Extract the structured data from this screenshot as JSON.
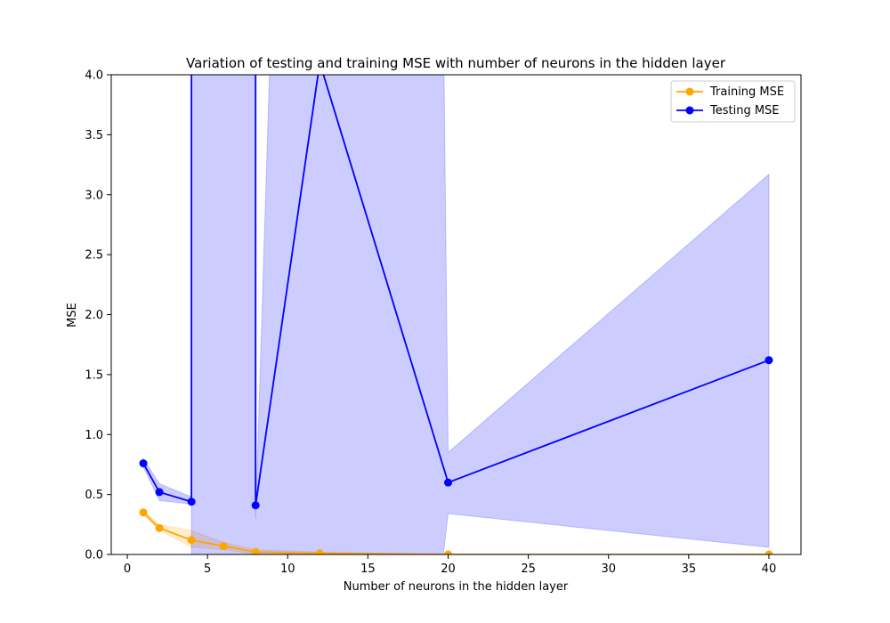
{
  "chart_data": {
    "type": "line",
    "title": "Variation of testing and training MSE with number of neurons in the hidden layer",
    "xlabel": "Number of neurons in the hidden layer",
    "ylabel": "MSE",
    "xlim": [
      -1,
      42
    ],
    "ylim": [
      0,
      4
    ],
    "xticks": [
      0,
      5,
      10,
      15,
      20,
      25,
      30,
      35,
      40
    ],
    "yticks": [
      0.0,
      0.5,
      1.0,
      1.5,
      2.0,
      2.5,
      3.0,
      3.5,
      4.0
    ],
    "xtick_labels": [
      "0",
      "5",
      "10",
      "15",
      "20",
      "25",
      "30",
      "35",
      "40"
    ],
    "ytick_labels": [
      "0.0",
      "0.5",
      "1.0",
      "1.5",
      "2.0",
      "2.5",
      "3.0",
      "3.5",
      "4.0"
    ],
    "grid": false,
    "legend_position": "top-right",
    "series": [
      {
        "name": "Training MSE",
        "color": "#ffa500",
        "x": [
          1,
          2,
          4,
          6,
          8,
          12,
          20,
          40
        ],
        "values": [
          0.35,
          0.22,
          0.12,
          0.07,
          0.02,
          0.01,
          0.0,
          0.0
        ],
        "band_lower": [
          0.33,
          0.2,
          0.06,
          0.04,
          0.0,
          0.0,
          0.0,
          0.0
        ],
        "band_upper": [
          0.37,
          0.25,
          0.2,
          0.1,
          0.04,
          0.02,
          0.0,
          0.0
        ]
      },
      {
        "name": "Testing MSE",
        "color": "#0000ff",
        "x": [
          1,
          2,
          4,
          4,
          8,
          8,
          12,
          20,
          40
        ],
        "values": [
          0.76,
          0.52,
          0.44,
          4.6,
          4.6,
          0.41,
          4.1,
          0.6,
          1.62
        ],
        "band_x": [
          1,
          2,
          4,
          4,
          8,
          8,
          9,
          18,
          19.7,
          20,
          40
        ],
        "band_lower": [
          0.73,
          0.45,
          0.42,
          0.0,
          0.0,
          0.0,
          0.0,
          0.0,
          0.0,
          0.34,
          0.06
        ],
        "band_upper": [
          0.8,
          0.59,
          0.48,
          4.6,
          4.6,
          0.3,
          4.6,
          4.6,
          4.6,
          0.85,
          3.17
        ]
      }
    ]
  }
}
